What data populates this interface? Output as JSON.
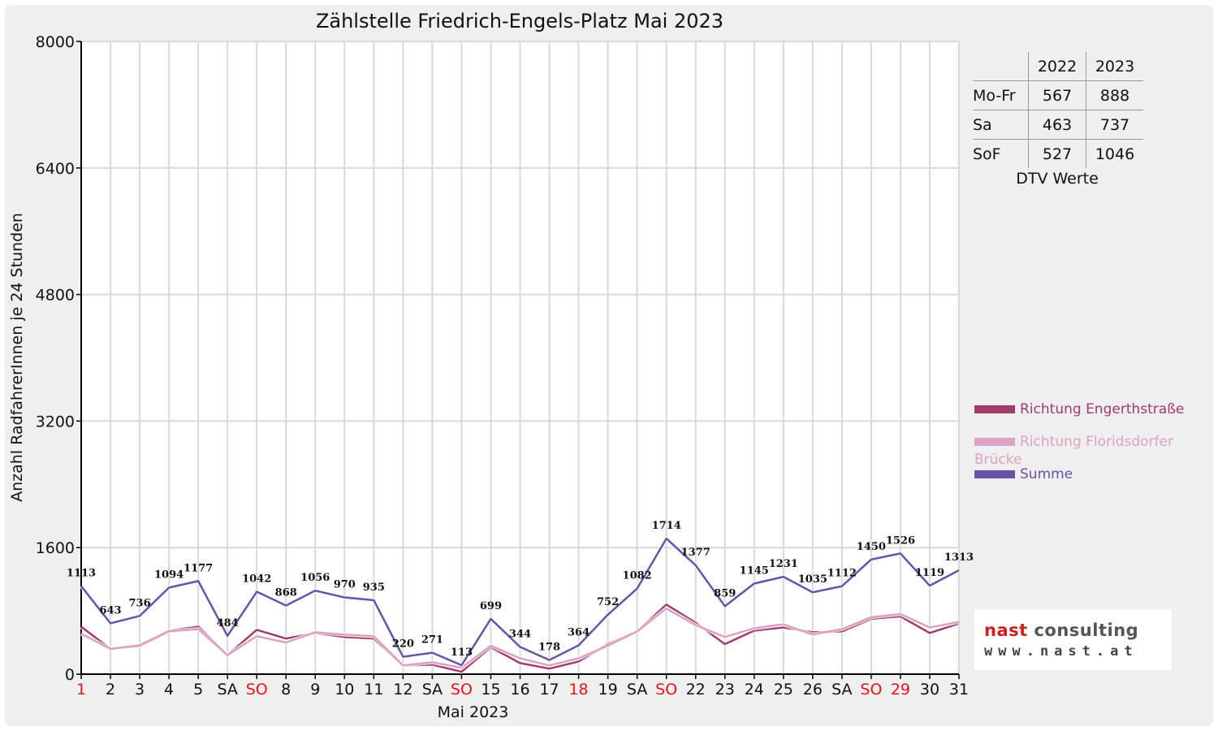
{
  "title": "Zählstelle Friedrich-Engels-Platz Mai 2023",
  "chart_data": {
    "type": "line",
    "title": "Zählstelle Friedrich-Engels-Platz Mai 2023",
    "xlabel": "Mai 2023",
    "ylabel": "Anzahl RadfahrerInnen je 24 Stunden",
    "ylim": [
      0,
      8000
    ],
    "yticks": [
      "0",
      "1600",
      "3200",
      "4800",
      "6400",
      "8000"
    ],
    "grid": true,
    "legend_position": "right",
    "categories": [
      "1",
      "2",
      "3",
      "4",
      "5",
      "SA",
      "SO",
      "8",
      "9",
      "10",
      "11",
      "12",
      "SA",
      "SO",
      "15",
      "16",
      "17",
      "18",
      "19",
      "SA",
      "SO",
      "22",
      "23",
      "24",
      "25",
      "26",
      "SA",
      "SO",
      "29",
      "30",
      "31"
    ],
    "red_categories": [
      0,
      6,
      13,
      17,
      20,
      27,
      28
    ],
    "series": [
      {
        "name": "Richtung Engerthstraße",
        "color": "#a23b6d",
        "values": [
          600,
          320,
          370,
          550,
          600,
          240,
          560,
          450,
          520,
          470,
          450,
          110,
          120,
          30,
          340,
          140,
          70,
          160,
          380,
          540,
          880,
          650,
          380,
          550,
          590,
          530,
          540,
          700,
          730,
          520,
          640
        ]
      },
      {
        "name": "Richtung Floridsdorfer Brücke",
        "color": "#dba3c1",
        "values": [
          510,
          320,
          360,
          540,
          570,
          240,
          480,
          400,
          530,
          500,
          480,
          110,
          150,
          80,
          360,
          200,
          110,
          200,
          360,
          540,
          830,
          620,
          470,
          580,
          630,
          500,
          570,
          720,
          760,
          590,
          660
        ]
      },
      {
        "name": "Summe",
        "color": "#6a52a8",
        "values": [
          1113,
          643,
          736,
          1094,
          1177,
          484,
          1042,
          868,
          1056,
          970,
          935,
          220,
          271,
          113,
          699,
          344,
          178,
          364,
          752,
          1082,
          1714,
          1377,
          859,
          1145,
          1231,
          1035,
          1112,
          1450,
          1526,
          1119,
          1313
        ]
      }
    ],
    "value_labels": [
      "1113",
      "643",
      "736",
      "1094",
      "1177",
      "484",
      "1042",
      "868",
      "1056",
      "970",
      "935",
      "220",
      "271",
      "113",
      "699",
      "344",
      "178",
      "364",
      "752",
      "1082",
      "1714",
      "1377",
      "859",
      "1145",
      "1231",
      "1035",
      "1112",
      "1450",
      "1526",
      "1119",
      "1313"
    ]
  },
  "dtv": {
    "caption": "DTV Werte",
    "headers": [
      "2022",
      "2023"
    ],
    "rows": [
      {
        "label": "Mo-Fr",
        "v2022": "567",
        "v2023": "888"
      },
      {
        "label": "Sa",
        "v2022": "463",
        "v2023": "737"
      },
      {
        "label": "SoF",
        "v2022": "527",
        "v2023": "1046"
      }
    ]
  },
  "logo": {
    "main_red": "nast",
    "main_gray": "consulting",
    "url": "www.nast.at"
  }
}
